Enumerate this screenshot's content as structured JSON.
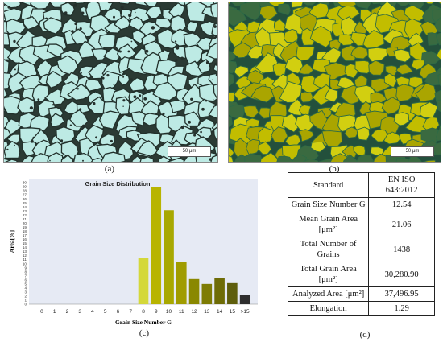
{
  "figure": {
    "panels": {
      "a": {
        "label": "(a)",
        "scale": "50 μm"
      },
      "b": {
        "label": "(b)",
        "scale": "50 μm"
      },
      "c": {
        "label": "(c)"
      },
      "d": {
        "label": "(d)"
      }
    },
    "colors": {
      "background_a": "#b9e7e2",
      "grain_boundary": "#1e2a26",
      "grain_fill_b": "#b8b400",
      "boundary_b": "#1f4a3a"
    }
  },
  "chart_data": {
    "type": "bar",
    "title": "Grain Size Distribution",
    "xlabel": "Grain Size Number G",
    "ylabel": "Area[%]",
    "categories": [
      "0",
      "1",
      "2",
      "3",
      "4",
      "5",
      "6",
      "7",
      "8",
      "9",
      "10",
      "11",
      "12",
      "13",
      "14",
      "15",
      ">15"
    ],
    "values": [
      0,
      0,
      0,
      0,
      0,
      0,
      0,
      0,
      11.4,
      28.9,
      23.2,
      10.4,
      6.2,
      5.0,
      6.5,
      5.2,
      2.3
    ],
    "bar_colors": [
      "#d8dc40",
      "#d8dc40",
      "#d8dc40",
      "#d8dc40",
      "#d8dc40",
      "#d8dc40",
      "#d8dc40",
      "#d8dc40",
      "#d4d83a",
      "#b8b400",
      "#a8a800",
      "#a09c00",
      "#8a8800",
      "#7e7c04",
      "#6e6c06",
      "#5e5e0c",
      "#2e2e2e"
    ],
    "yticks": [
      0,
      1,
      2,
      3,
      4,
      5,
      6,
      7,
      8,
      9,
      10,
      11,
      12,
      13,
      14,
      15,
      16,
      17,
      18,
      19,
      20,
      21,
      22,
      23,
      24,
      25,
      26,
      27,
      28,
      29,
      30
    ],
    "ylim": [
      0,
      31
    ],
    "plot_background": "#e6eaf4",
    "grid": false
  },
  "table": {
    "rows": [
      {
        "key": "Standard",
        "value": "EN ISO 643:2012"
      },
      {
        "key": "Grain Size Number G",
        "value": "12.54"
      },
      {
        "key": "Mean Grain Area [μm²]",
        "value": "21.06"
      },
      {
        "key": "Total Number of Grains",
        "value": "1438"
      },
      {
        "key": "Total Grain Area [μm²]",
        "value": "30,280.90"
      },
      {
        "key": "Analyzed Area [μm²]",
        "value": "37,496.95"
      },
      {
        "key": "Elongation",
        "value": "1.29"
      }
    ]
  }
}
